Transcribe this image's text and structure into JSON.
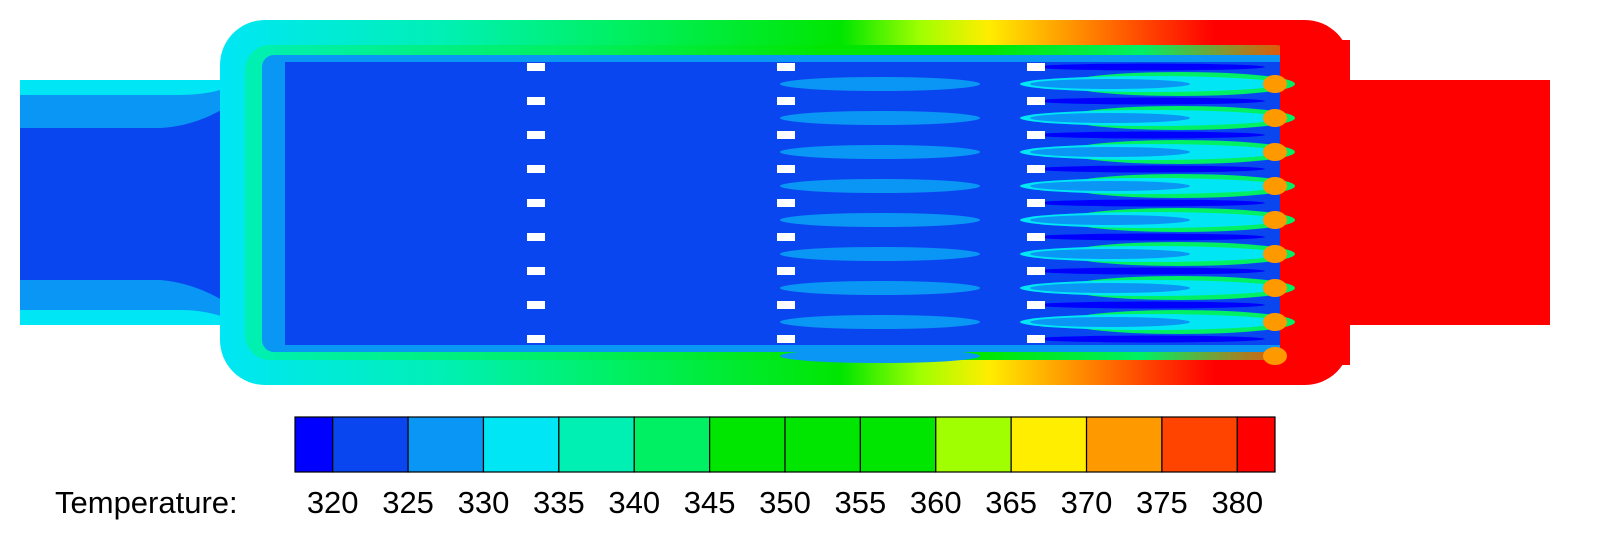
{
  "chart_data": {
    "type": "contour",
    "colorbar": {
      "label": "Temperature:",
      "ticks": [
        320,
        325,
        330,
        335,
        340,
        345,
        350,
        355,
        360,
        365,
        370,
        375,
        380
      ],
      "lim": [
        317.5,
        382.5
      ],
      "bins": [
        317.5,
        320,
        325,
        330,
        335,
        340,
        345,
        350,
        355,
        360,
        365,
        370,
        375,
        380,
        382.5
      ],
      "colors": [
        "#0000ff",
        "#0a46f0",
        "#0a96f5",
        "#00e6f5",
        "#00f0b4",
        "#00f064",
        "#00e600",
        "#00e600",
        "#00e600",
        "#a0ff00",
        "#ffee00",
        "#ff9900",
        "#ff4400",
        "#ff0000"
      ]
    }
  }
}
